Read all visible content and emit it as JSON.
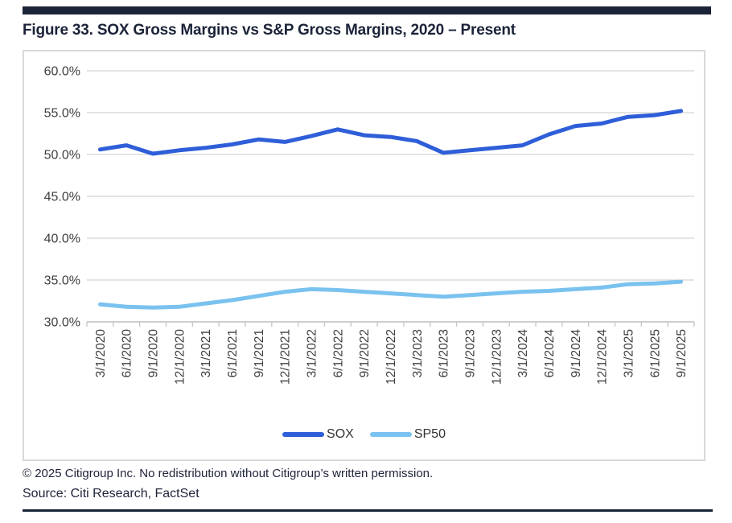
{
  "figure": {
    "title": "Figure 33. SOX Gross Margins vs S&P Gross Margins, 2020 – Present",
    "copyright": "© 2025 Citigroup Inc. No redistribution without Citigroup’s written permission.",
    "source": "Source: Citi Research, FactSet"
  },
  "colors": {
    "accent_navy": "#1B2339",
    "sox_line": "#2F5ED9",
    "sp50_line": "#7AC2EF",
    "gridline": "#DCDCDC",
    "axis": "#C8C8C8",
    "tick_text": "#3F3F3F"
  },
  "chart_data": {
    "type": "line",
    "title": "Figure 33. SOX Gross Margins vs S&P Gross Margins, 2020 – Present",
    "xlabel": "",
    "ylabel": "",
    "ylim": [
      30,
      60
    ],
    "yticks": [
      30,
      35,
      40,
      45,
      50,
      55,
      60
    ],
    "ytick_labels": [
      "30.0%",
      "35.0%",
      "40.0%",
      "45.0%",
      "50.0%",
      "55.0%",
      "60.0%"
    ],
    "grid": "horizontal",
    "legend_position": "bottom",
    "categories": [
      "3/1/2020",
      "6/1/2020",
      "9/1/2020",
      "12/1/2020",
      "3/1/2021",
      "6/1/2021",
      "9/1/2021",
      "12/1/2021",
      "3/1/2022",
      "6/1/2022",
      "9/1/2022",
      "12/1/2022",
      "3/1/2023",
      "6/1/2023",
      "9/1/2023",
      "12/1/2023",
      "3/1/2024",
      "6/1/2024",
      "9/1/2024",
      "12/1/2024",
      "3/1/2025",
      "6/1/2025",
      "9/1/2025"
    ],
    "series": [
      {
        "name": "SOX",
        "color": "#2F5ED9",
        "values": [
          50.6,
          51.1,
          50.1,
          50.5,
          50.8,
          51.2,
          51.8,
          51.5,
          52.2,
          53.0,
          52.3,
          52.1,
          51.6,
          50.2,
          50.5,
          50.8,
          51.1,
          52.4,
          53.4,
          53.7,
          54.5,
          54.7,
          55.2
        ]
      },
      {
        "name": "SP50",
        "color": "#7AC2EF",
        "values": [
          32.1,
          31.8,
          31.7,
          31.8,
          32.2,
          32.6,
          33.1,
          33.6,
          33.9,
          33.8,
          33.6,
          33.4,
          33.2,
          33.0,
          33.2,
          33.4,
          33.6,
          33.7,
          33.9,
          34.1,
          34.5,
          34.6,
          34.8
        ]
      }
    ]
  }
}
